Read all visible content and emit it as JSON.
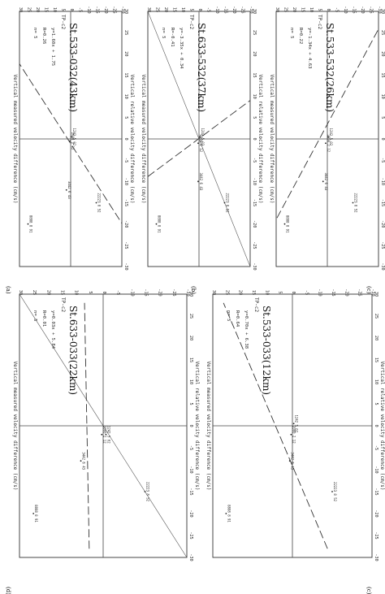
{
  "figure": {
    "panels": [
      {
        "id": "a",
        "label": "(a)"
      },
      {
        "id": "b",
        "label": "(b)"
      },
      {
        "id": "c",
        "label": "(c)"
      },
      {
        "id": "d",
        "label": "(d)"
      },
      {
        "id": "e",
        "label": "(c)"
      }
    ]
  },
  "chart_data": [
    {
      "type": "scatter",
      "panel": "a",
      "title": "St.533-032(43km)",
      "station_tag": "TP-c2",
      "xlabel": "Vertical relative velocity difference (cm/s)",
      "ylabel": "Vertical measured velocity difference (cm/s)",
      "xlim": [
        -30,
        30
      ],
      "ylim": [
        -30,
        30
      ],
      "x_ticks": [
        -30,
        -25,
        -20,
        -15,
        -10,
        -5,
        0,
        5,
        10,
        15,
        20,
        25,
        30
      ],
      "y_ticks": [
        -30,
        -25,
        -20,
        -15,
        -10,
        -5,
        0,
        5,
        10,
        15,
        20,
        25,
        30
      ],
      "stats": [
        "y=1.60x + 1.75",
        "R=0.26",
        "n= 5"
      ],
      "fit": {
        "slope": 1.6,
        "intercept": 1.75
      },
      "identity_line": false,
      "points": [
        {
          "x": -20,
          "y": 25,
          "label": "8888 8 91"
        },
        {
          "x": -12,
          "y": 2.5,
          "label": "3442 6 43"
        },
        {
          "x": -0.5,
          "y": 0.5,
          "label": "2000 2 12"
        },
        {
          "x": 0.5,
          "y": -0.5,
          "label": "1242 5 02"
        },
        {
          "x": -15,
          "y": -15,
          "label": "22223 8 52"
        }
      ]
    },
    {
      "type": "scatter",
      "panel": "b",
      "title": "St.633-532(37km)",
      "station_tag": "TP-c2",
      "xlabel": "Vertical relative velocity difference (cm/s)",
      "ylabel": "Vertical measured velocity difference (cm/s)",
      "xlim": [
        -30,
        30
      ],
      "ylim": [
        -30,
        30
      ],
      "x_ticks": [
        -30,
        -25,
        -20,
        -15,
        -10,
        -5,
        0,
        5,
        10,
        15,
        20,
        25,
        30
      ],
      "y_ticks": [
        -30,
        -25,
        -20,
        -15,
        -10,
        -5,
        0,
        5,
        10,
        15,
        20,
        25,
        30
      ],
      "stats": [
        "y=-3.35x + 0.34",
        "R=-0.41",
        "n= 5"
      ],
      "fit": {
        "slope": -3.35,
        "intercept": 0.34
      },
      "identity_line": true,
      "points": [
        {
          "x": -20,
          "y": 25,
          "label": "8888 8 91"
        },
        {
          "x": -10,
          "y": 0.5,
          "label": "3442 6 43"
        },
        {
          "x": -1,
          "y": 0.5,
          "label": "2000 2 12"
        },
        {
          "x": 0.5,
          "y": -0.5,
          "label": "1242 5 02"
        },
        {
          "x": -15,
          "y": -15,
          "label": "22223 8 52"
        }
      ]
    },
    {
      "type": "scatter",
      "panel": "c",
      "title": "St.533-532(26km)",
      "station_tag": "TP-c2",
      "xlabel": "Vertical relative velocity difference (cm/s)",
      "ylabel": "Vertical measured velocity difference (cm/s)",
      "xlim": [
        -30,
        30
      ],
      "ylim": [
        -30,
        30
      ],
      "x_ticks": [
        -30,
        -25,
        -20,
        -15,
        -10,
        -5,
        0,
        5,
        10,
        15,
        20,
        25,
        30
      ],
      "y_ticks": [
        -30,
        -25,
        -20,
        -15,
        -10,
        -5,
        0,
        5,
        10,
        15,
        20,
        25,
        30
      ],
      "stats": [
        "y=-1.34x + 4.63",
        "R=0.22",
        "n= 5"
      ],
      "fit": {
        "slope": -1.34,
        "intercept": 4.63
      },
      "identity_line": false,
      "points": [
        {
          "x": -20,
          "y": 25,
          "label": "8888 8 91"
        },
        {
          "x": -10,
          "y": 2.5,
          "label": "3442 6 43"
        },
        {
          "x": -1,
          "y": 1,
          "label": "2000 2 12"
        },
        {
          "x": 0.5,
          "y": -0.5,
          "label": "1242 5 02"
        },
        {
          "x": -15,
          "y": -15,
          "label": "22223 8 52"
        }
      ]
    },
    {
      "type": "scatter",
      "panel": "d",
      "title": "St.633-033(22km)",
      "station_tag": "TP-c2",
      "xlabel": "Vertical relative velocity difference (cm/s)",
      "ylabel": "Vertical measured velocity difference (cm/s)",
      "xlim": [
        -30,
        30
      ],
      "ylim": [
        -30,
        30
      ],
      "x_ticks": [
        -30,
        -25,
        -20,
        -15,
        -10,
        -5,
        0,
        5,
        10,
        15,
        20,
        25,
        30
      ],
      "y_ticks": [
        -30,
        -25,
        -20,
        -15,
        -10,
        -5,
        0,
        5,
        10,
        15,
        20,
        25,
        30
      ],
      "stats": [
        "y=0.03x + 5.84",
        "R=0.01",
        "n= 5"
      ],
      "fit": {
        "slope": 0.03,
        "intercept": 5.84
      },
      "identity_line": true,
      "points": [
        {
          "x": -20,
          "y": 25,
          "label": "8888 8 91"
        },
        {
          "x": -8,
          "y": 8,
          "label": "3442 6 43"
        },
        {
          "x": -2,
          "y": 0.5,
          "label": "2000 2 12"
        },
        {
          "x": -2,
          "y": -1,
          "label": "1242 5 02"
        },
        {
          "x": -15,
          "y": -15,
          "label": "22223 8 52"
        }
      ]
    },
    {
      "type": "scatter",
      "panel": "e",
      "title": "St.533-033(12km)",
      "station_tag": "TP-c2",
      "xlabel": "Vertical relative velocity difference (cm/s)",
      "ylabel": "Vertical measured velocity difference (cm/s)",
      "xlim": [
        -30,
        30
      ],
      "ylim": [
        -30,
        30
      ],
      "x_ticks": [
        -30,
        -25,
        -20,
        -15,
        -10,
        -5,
        0,
        5,
        10,
        15,
        20,
        25,
        30
      ],
      "y_ticks": [
        -30,
        -25,
        -20,
        -15,
        -10,
        -5,
        0,
        5,
        10,
        15,
        20,
        25,
        30
      ],
      "stats": [
        "y=0.70x + 6.38",
        "R=0.64",
        "n= 5"
      ],
      "fit": {
        "slope": 0.7,
        "intercept": 6.38
      },
      "identity_line": false,
      "points": [
        {
          "x": -20,
          "y": 25,
          "label": "8888 8 91"
        },
        {
          "x": -8,
          "y": 1,
          "label": "3442 6 43"
        },
        {
          "x": -2,
          "y": 0.5,
          "label": "2000 2 12"
        },
        {
          "x": 0.5,
          "y": -0.5,
          "label": "1242 5 02"
        },
        {
          "x": -15,
          "y": -15,
          "label": "22223 8 52"
        }
      ]
    }
  ]
}
